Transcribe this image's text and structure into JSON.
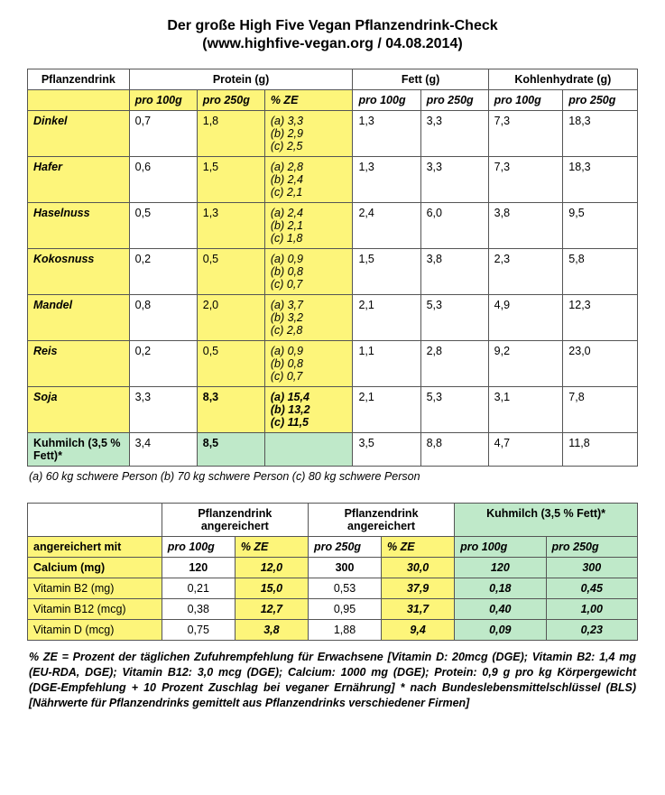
{
  "title": "Der große High Five Vegan Pflanzendrink-Check",
  "subtitle": "(www.highfive-vegan.org / 04.08.2014)",
  "colors": {
    "yellow": "#fdf57a",
    "green": "#bfe9c9",
    "border": "#555555",
    "text": "#000000",
    "bg": "#ffffff"
  },
  "table1": {
    "headers": {
      "drink": "Pflanzendrink",
      "protein": "Protein (g)",
      "fat": "Fett (g)",
      "carb": "Kohlenhydrate (g)"
    },
    "subheaders": {
      "per100": "pro 100g",
      "per250": "pro 250g",
      "ze": "% ZE"
    },
    "rows": [
      {
        "name": "Dinkel",
        "p100": "0,7",
        "p250": "1,8",
        "ze": [
          "(a) 3,3",
          "(b) 2,9",
          "(c) 2,5"
        ],
        "f100": "1,3",
        "f250": "3,3",
        "c100": "7,3",
        "c250": "18,3",
        "bold": false
      },
      {
        "name": "Hafer",
        "p100": "0,6",
        "p250": "1,5",
        "ze": [
          "(a) 2,8",
          "(b) 2,4",
          "(c) 2,1"
        ],
        "f100": "1,3",
        "f250": "3,3",
        "c100": "7,3",
        "c250": "18,3",
        "bold": false
      },
      {
        "name": "Haselnuss",
        "p100": "0,5",
        "p250": "1,3",
        "ze": [
          "(a) 2,4",
          "(b) 2,1",
          "(c) 1,8"
        ],
        "f100": "2,4",
        "f250": "6,0",
        "c100": "3,8",
        "c250": "9,5",
        "bold": false
      },
      {
        "name": "Kokosnuss",
        "p100": "0,2",
        "p250": "0,5",
        "ze": [
          "(a) 0,9",
          "(b) 0,8",
          "(c) 0,7"
        ],
        "f100": "1,5",
        "f250": "3,8",
        "c100": "2,3",
        "c250": "5,8",
        "bold": false
      },
      {
        "name": "Mandel",
        "p100": "0,8",
        "p250": "2,0",
        "ze": [
          "(a) 3,7",
          "(b) 3,2",
          "(c) 2,8"
        ],
        "f100": "2,1",
        "f250": "5,3",
        "c100": "4,9",
        "c250": "12,3",
        "bold": false
      },
      {
        "name": "Reis",
        "p100": "0,2",
        "p250": "0,5",
        "ze": [
          "(a) 0,9",
          "(b) 0,8",
          "(c) 0,7"
        ],
        "f100": "1,1",
        "f250": "2,8",
        "c100": "9,2",
        "c250": "23,0",
        "bold": false
      },
      {
        "name": "Soja",
        "p100": "3,3",
        "p250": "8,3",
        "ze": [
          "(a) 15,4",
          "(b) 13,2",
          "(c) 11,5"
        ],
        "f100": "2,1",
        "f250": "5,3",
        "c100": "3,1",
        "c250": "7,8",
        "bold": true
      }
    ],
    "milkrow": {
      "name": "Kuhmilch (3,5 % Fett)*",
      "p100": "3,4",
      "p250": "8,5",
      "ze": "",
      "f100": "3,5",
      "f250": "8,8",
      "c100": "4,7",
      "c250": "11,8"
    }
  },
  "footnote1": "(a) 60 kg schwere Person  (b) 70 kg schwere Person  (c) 80 kg schwere Person",
  "table2": {
    "headers": {
      "col1": "",
      "pd1": "Pflanzendrink angereichert",
      "pd2": "Pflanzendrink angereichert",
      "milk": "Kuhmilch (3,5 % Fett)*"
    },
    "subheaders": {
      "enriched": "angereichert mit",
      "per100": "pro 100g",
      "ze": "% ZE",
      "per250": "pro 250g"
    },
    "rows": [
      {
        "name": "Calcium (mg)",
        "v100": "120",
        "ze1": "12,0",
        "v250": "300",
        "ze2": "30,0",
        "m100": "120",
        "m250": "300",
        "bold": true
      },
      {
        "name": "Vitamin B2 (mg)",
        "v100": "0,21",
        "ze1": "15,0",
        "v250": "0,53",
        "ze2": "37,9",
        "m100": "0,18",
        "m250": "0,45",
        "bold": false
      },
      {
        "name": "Vitamin B12 (mcg)",
        "v100": "0,38",
        "ze1": "12,7",
        "v250": "0,95",
        "ze2": "31,7",
        "m100": "0,40",
        "m250": "1,00",
        "bold": false
      },
      {
        "name": "Vitamin D (mcg)",
        "v100": "0,75",
        "ze1": "3,8",
        "v250": "1,88",
        "ze2": "9,4",
        "m100": "0,09",
        "m250": "0,23",
        "bold": false
      }
    ]
  },
  "notes": "% ZE = Prozent der täglichen Zufuhrempfehlung für Erwachsene [Vitamin D: 20mcg (DGE); Vitamin B2: 1,4 mg (EU-RDA, DGE); Vitamin B12: 3,0 mcg (DGE); Calcium: 1000 mg (DGE); Protein: 0,9 g pro kg Körpergewicht (DGE-Empfehlung + 10 Prozent Zuschlag bei veganer Ernährung]           * nach Bundeslebensmittelschlüssel (BLS) [Nährwerte für Pflanzendrinks gemittelt aus Pflanzendrinks verschiedener Firmen]"
}
